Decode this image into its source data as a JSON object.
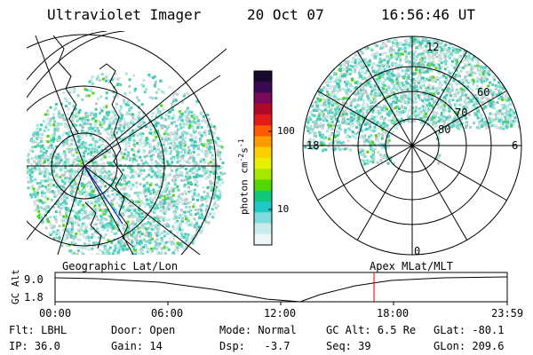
{
  "header": {
    "title": "Ultraviolet Imager",
    "date": "20 Oct 07",
    "time": "16:56:46 UT"
  },
  "colorbar": {
    "label_prefix": "photon cm",
    "label_exp1": "-2",
    "label_mid": "s",
    "label_exp2": "-1",
    "ticks": [
      "100",
      "10"
    ],
    "colors": [
      "#1a0a2e",
      "#3b0a55",
      "#7a0a5a",
      "#b00a2a",
      "#e21a1a",
      "#ff5a00",
      "#ff9a00",
      "#ffd000",
      "#e8f000",
      "#a8e800",
      "#50d800",
      "#10c87a",
      "#20c8c8",
      "#80dcdc",
      "#c8ecec",
      "#eef6f6"
    ]
  },
  "polar_plot": {
    "mlt_labels": [
      "12",
      "18",
      "6",
      "0"
    ],
    "lat_labels": [
      "60",
      "70",
      "80"
    ]
  },
  "geo_label": "Geographic Lat/Lon",
  "apex_label": "Apex MLat/MLT",
  "altitude_plot": {
    "axis_title": "GC Alt",
    "y_ticks": [
      "9.0",
      "1.8"
    ],
    "x_ticks": [
      "00:00",
      "06:00",
      "12:00",
      "18:00",
      "23:59"
    ]
  },
  "status": {
    "row1": [
      {
        "label": "Flt:",
        "value": "LBHL"
      },
      {
        "label": "Door:",
        "value": "Open"
      },
      {
        "label": "Mode:",
        "value": "Normal"
      },
      {
        "label": "GC Alt:",
        "value": "6.5 Re"
      },
      {
        "label": "GLat:",
        "value": "-80.1"
      }
    ],
    "row2": [
      {
        "label": "IP:",
        "value": "36.0"
      },
      {
        "label": "Gain:",
        "value": "14"
      },
      {
        "label": "Dsp:",
        "value": "-3.7"
      },
      {
        "label": "Seq:",
        "value": "39"
      },
      {
        "label": "GLon:",
        "value": "209.6"
      }
    ]
  },
  "colors": {
    "aurora_teal": "#40c8b4",
    "aurora_green": "#50d800",
    "marker_red": "#e00000"
  }
}
